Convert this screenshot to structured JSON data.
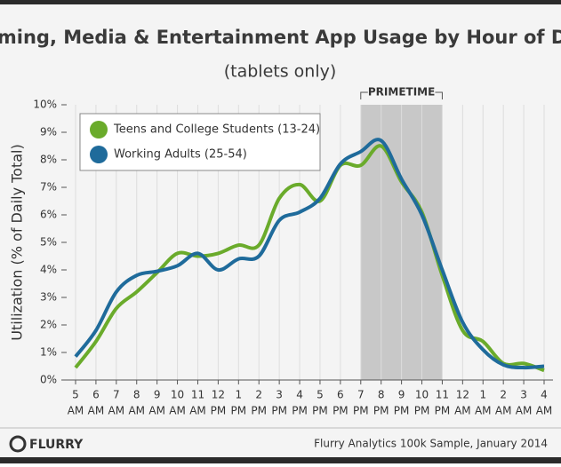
{
  "chart_data": {
    "type": "line",
    "title": "Gaming, Media & Entertainment App Usage by Hour of Day",
    "subtitle": "(tablets only)",
    "y_label": "Utilization (% of Daily Total)",
    "categories": [
      "5",
      "6",
      "7",
      "8",
      "9",
      "10",
      "11",
      "12",
      "1",
      "2",
      "3",
      "4",
      "5",
      "6",
      "7",
      "8",
      "9",
      "10",
      "11",
      "12",
      "1",
      "2",
      "3",
      "4"
    ],
    "category_periods": [
      "AM",
      "AM",
      "AM",
      "AM",
      "AM",
      "AM",
      "AM",
      "PM",
      "PM",
      "PM",
      "PM",
      "PM",
      "PM",
      "PM",
      "PM",
      "PM",
      "PM",
      "PM",
      "PM",
      "AM",
      "AM",
      "AM",
      "AM",
      "AM"
    ],
    "series": [
      {
        "name": "Teens and College Students (13-24)",
        "color": "#6aab2b",
        "values": [
          0.45,
          1.4,
          2.6,
          3.2,
          3.9,
          4.6,
          4.5,
          4.6,
          4.9,
          4.9,
          6.6,
          7.1,
          6.5,
          7.8,
          7.8,
          8.5,
          7.2,
          6.1,
          3.8,
          1.8,
          1.4,
          0.6,
          0.6,
          0.35
        ]
      },
      {
        "name": "Working Adults (25-54)",
        "color": "#1f6b9b",
        "values": [
          0.85,
          1.8,
          3.2,
          3.8,
          3.95,
          4.15,
          4.6,
          4.0,
          4.4,
          4.5,
          5.8,
          6.1,
          6.6,
          7.85,
          8.3,
          8.7,
          7.3,
          6.0,
          4.0,
          2.1,
          1.1,
          0.55,
          0.45,
          0.5
        ]
      }
    ],
    "ylim": [
      0,
      10
    ],
    "yticks": [
      {
        "value": 0,
        "label": "0%"
      },
      {
        "value": 1,
        "label": "1%"
      },
      {
        "value": 2,
        "label": "2%"
      },
      {
        "value": 3,
        "label": "3%"
      },
      {
        "value": 4,
        "label": "4%"
      },
      {
        "value": 5,
        "label": "5%"
      },
      {
        "value": 6,
        "label": "6%"
      },
      {
        "value": 7,
        "label": "7%"
      },
      {
        "value": 8,
        "label": "8%"
      },
      {
        "value": 9,
        "label": "9%"
      },
      {
        "value": 10,
        "label": "10%"
      }
    ],
    "highlight": {
      "label": "PRIMETIME",
      "from": 14,
      "to": 18
    },
    "logo": "FLURRY",
    "source": "Flurry Analytics 100k Sample, January 2014"
  }
}
